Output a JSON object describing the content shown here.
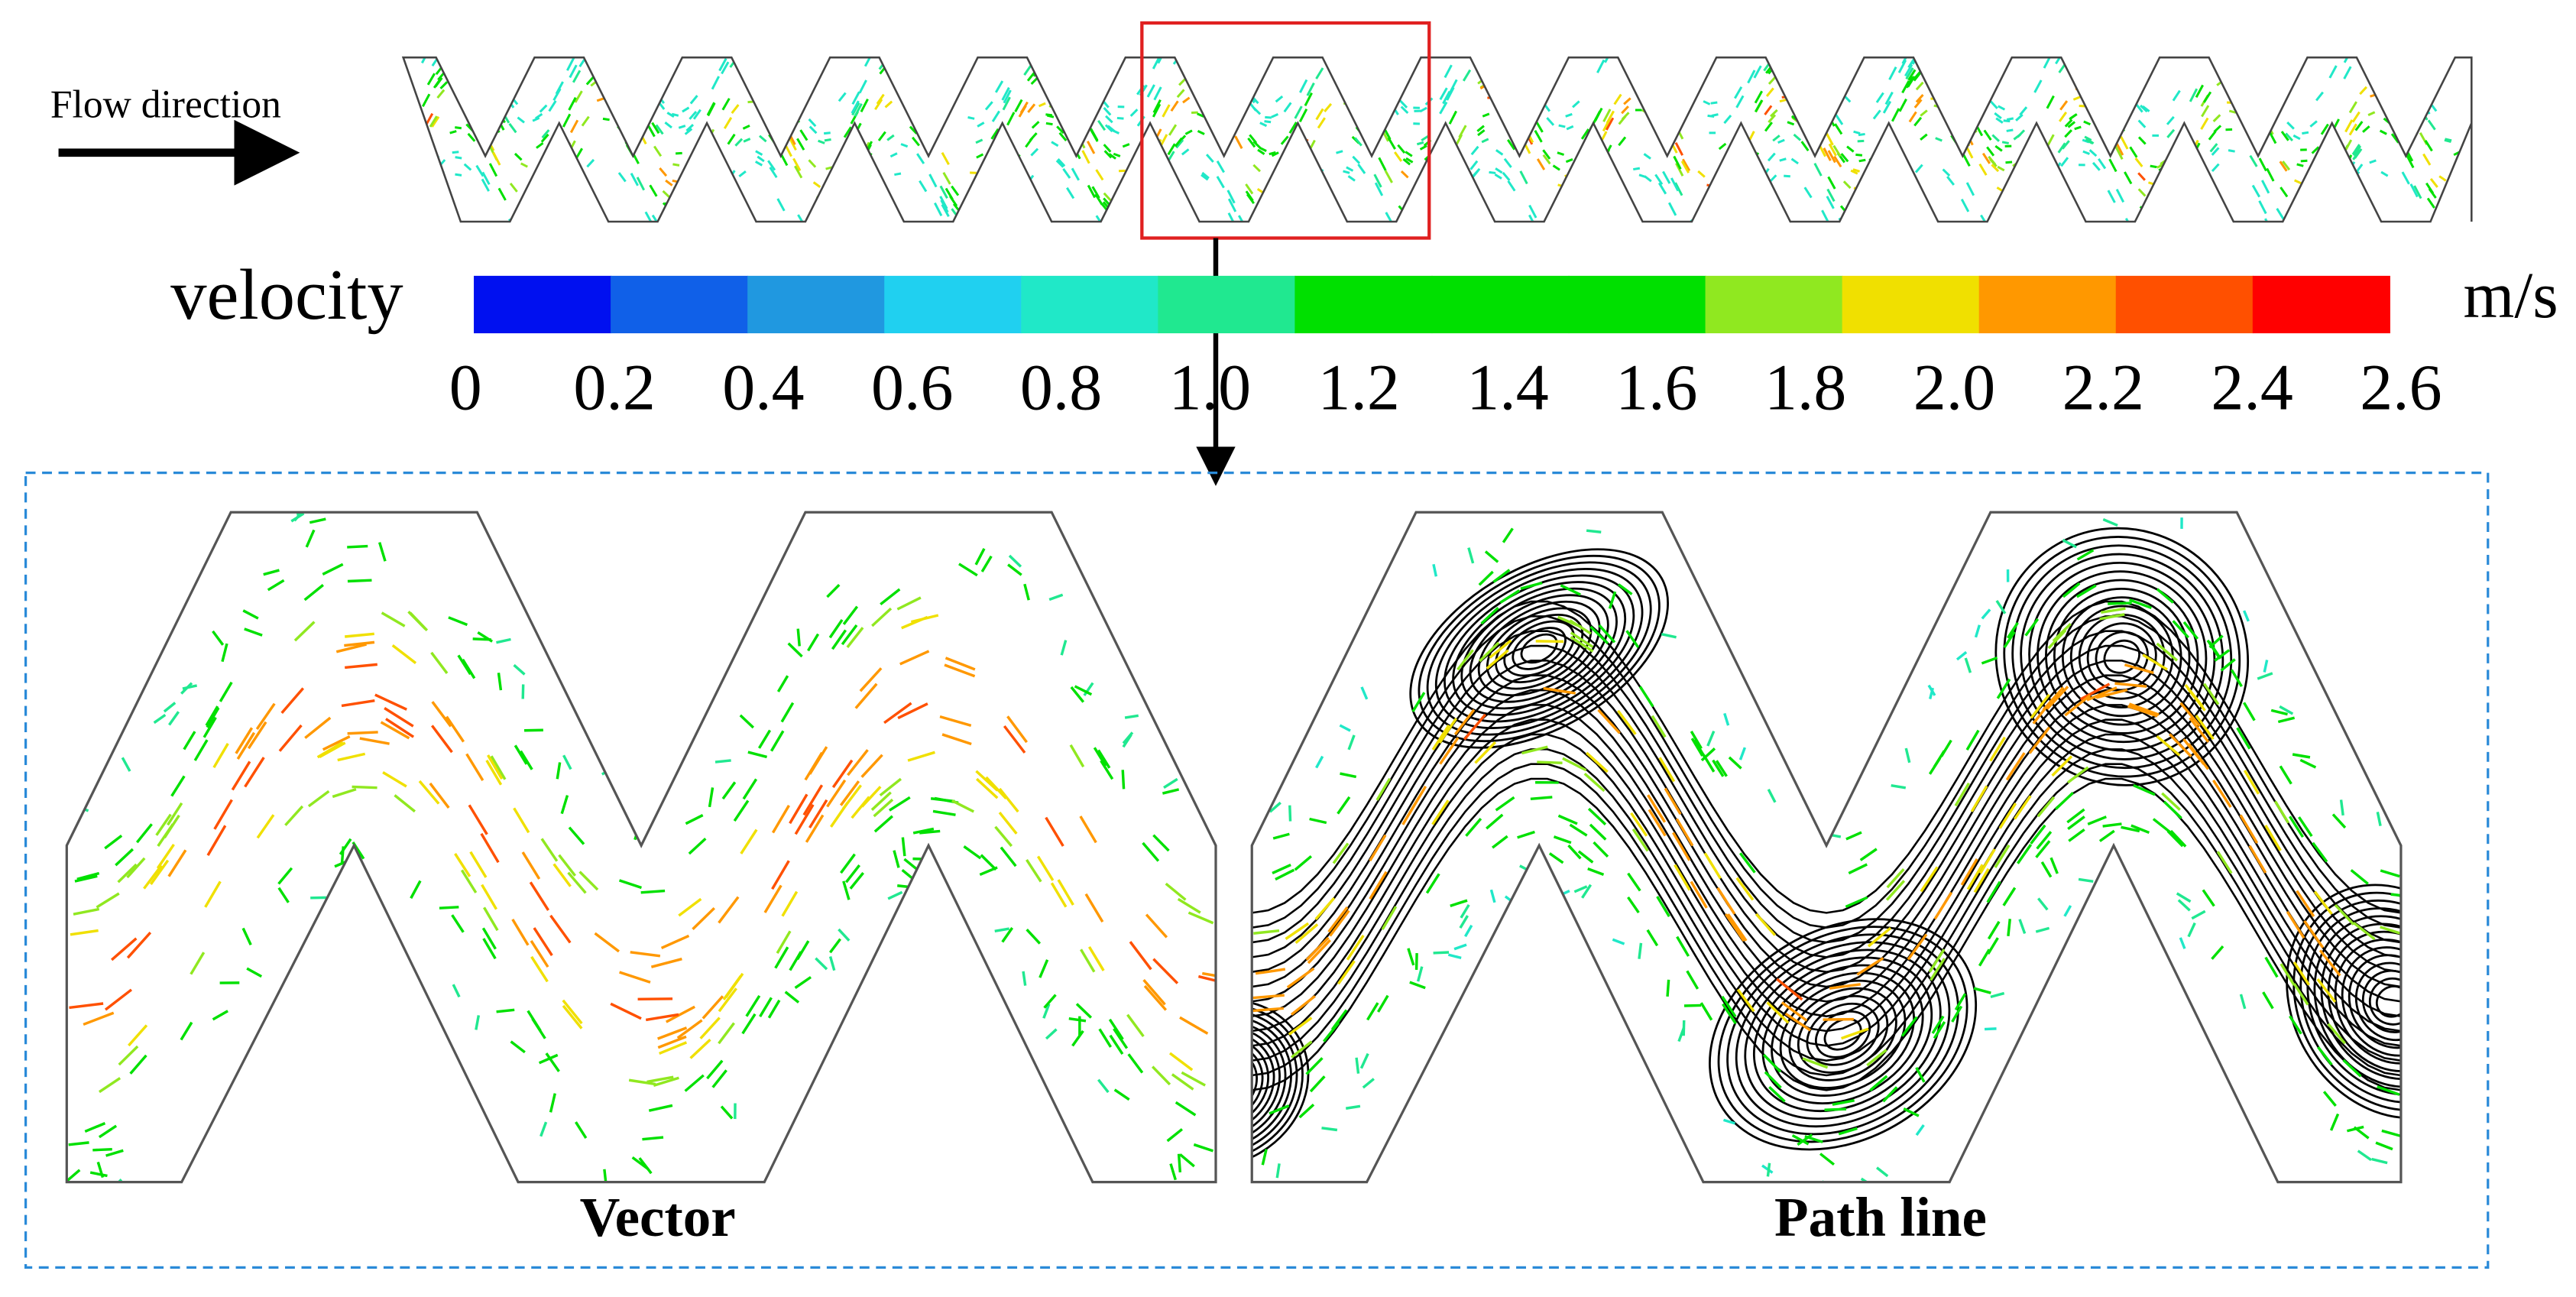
{
  "flow_label": "Flow direction",
  "colorbar": {
    "title": "velocity",
    "unit": "m/s",
    "ticks": [
      "0",
      "0.2",
      "0.4",
      "0.6",
      "0.8",
      "1.0",
      "1.2",
      "1.4",
      "1.6",
      "1.8",
      "2.0",
      "2.2",
      "2.4",
      "2.6"
    ],
    "colors": [
      "#0010f0",
      "#1060e8",
      "#2098e0",
      "#20d0f0",
      "#20e8c8",
      "#20e890",
      "#00e000",
      "#00e000",
      "#00e000",
      "#90e820",
      "#f0e000",
      "#ff9800",
      "#ff5000",
      "#ff0000"
    ]
  },
  "panels": [
    {
      "label": "Vector"
    },
    {
      "label": "Path line"
    }
  ]
}
